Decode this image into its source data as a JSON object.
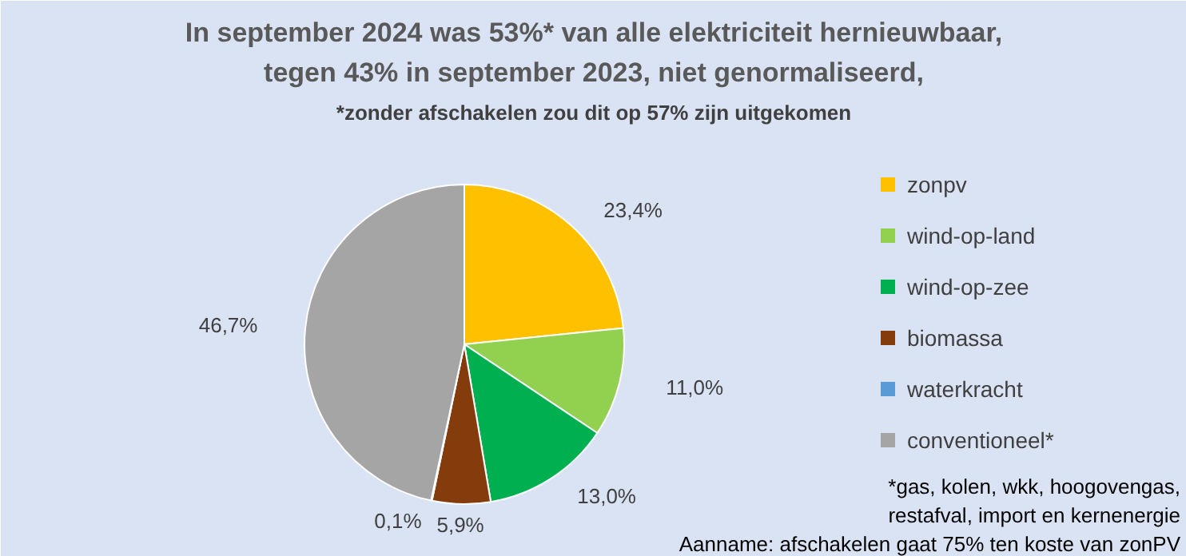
{
  "chart_data": {
    "type": "pie",
    "title": "In september 2024 was 53%* van alle elektriciteit hernieuwbaar,\ntegen 43% in september 2023, niet genormaliseerd,",
    "subtitle": "*zonder afschakelen zou dit op 57% zijn uitgekomen",
    "categories": [
      "zonpv",
      "wind-op-land",
      "wind-op-zee",
      "biomassa",
      "waterkracht",
      "conventioneel*"
    ],
    "values": [
      23.4,
      11.0,
      13.0,
      5.9,
      0.1,
      46.7
    ],
    "value_labels": [
      "23,4%",
      "11,0%",
      "13,0%",
      "5,9%",
      "0,1%",
      "46,7%"
    ],
    "colors": [
      "#ffc000",
      "#92d050",
      "#00b050",
      "#843c0c",
      "#5b9bd5",
      "#a5a5a5"
    ],
    "legend": "right",
    "annotations": [
      "*gas, kolen, wkk, hoogovengas,\nrestafval, import en kernenergie",
      "Aanname: afschakelen gaat 75% ten koste van zonPV"
    ]
  }
}
